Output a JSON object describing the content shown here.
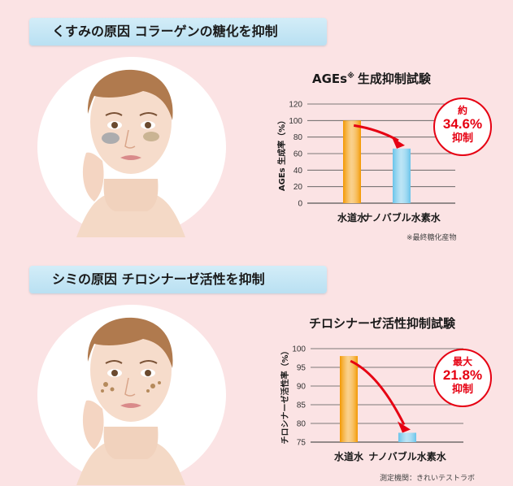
{
  "section1": {
    "banner": "くすみの原因 コラーゲンの糖化を抑制",
    "chart_title": "AGEs",
    "chart_title_sup": "※",
    "chart_title_rest": "生成抑制試験",
    "badge": {
      "line1": "約",
      "line2": "34.6%",
      "line3": "抑制"
    },
    "note": "※最終糖化産物"
  },
  "section2": {
    "banner": "シミの原因  チロシナーゼ活性を抑制",
    "chart_title": "チロシナーゼ活性抑制試験",
    "badge": {
      "line1": "最大",
      "line2": "21.8%",
      "line3": "抑制"
    },
    "note": "測定機関：きれいテストラボ"
  },
  "colors": {
    "orange": "#f39800",
    "blue": "#68c3ea",
    "red": "#e60012",
    "pink_bg": "#fbe3e4",
    "banner_blue": "#c6e7f5"
  },
  "chart_data": [
    {
      "type": "bar",
      "title": "AGEs※生成抑制試験",
      "ylabel": "AGEs 生成率（%）",
      "xlabel": "",
      "categories": [
        "水道水",
        "ナノバブル水素水"
      ],
      "values": [
        100,
        66
      ],
      "bar_colors": [
        "#f39800",
        "#68c3ea"
      ],
      "ylim": [
        0,
        120
      ],
      "yticks": [
        0,
        20,
        40,
        60,
        80,
        100,
        120
      ],
      "grid": true,
      "annotation": "約 34.6% 抑制"
    },
    {
      "type": "bar",
      "title": "チロシナーゼ活性抑制試験",
      "ylabel": "チロシナーゼ活性率（%）",
      "xlabel": "",
      "categories": [
        "水道水",
        "ナノバブル水素水"
      ],
      "values": [
        98,
        77.5
      ],
      "bar_colors": [
        "#f39800",
        "#68c3ea"
      ],
      "ylim": [
        75,
        100
      ],
      "yticks": [
        75,
        80,
        85,
        90,
        95,
        100
      ],
      "grid": true,
      "annotation": "最大 21.8% 抑制"
    }
  ]
}
